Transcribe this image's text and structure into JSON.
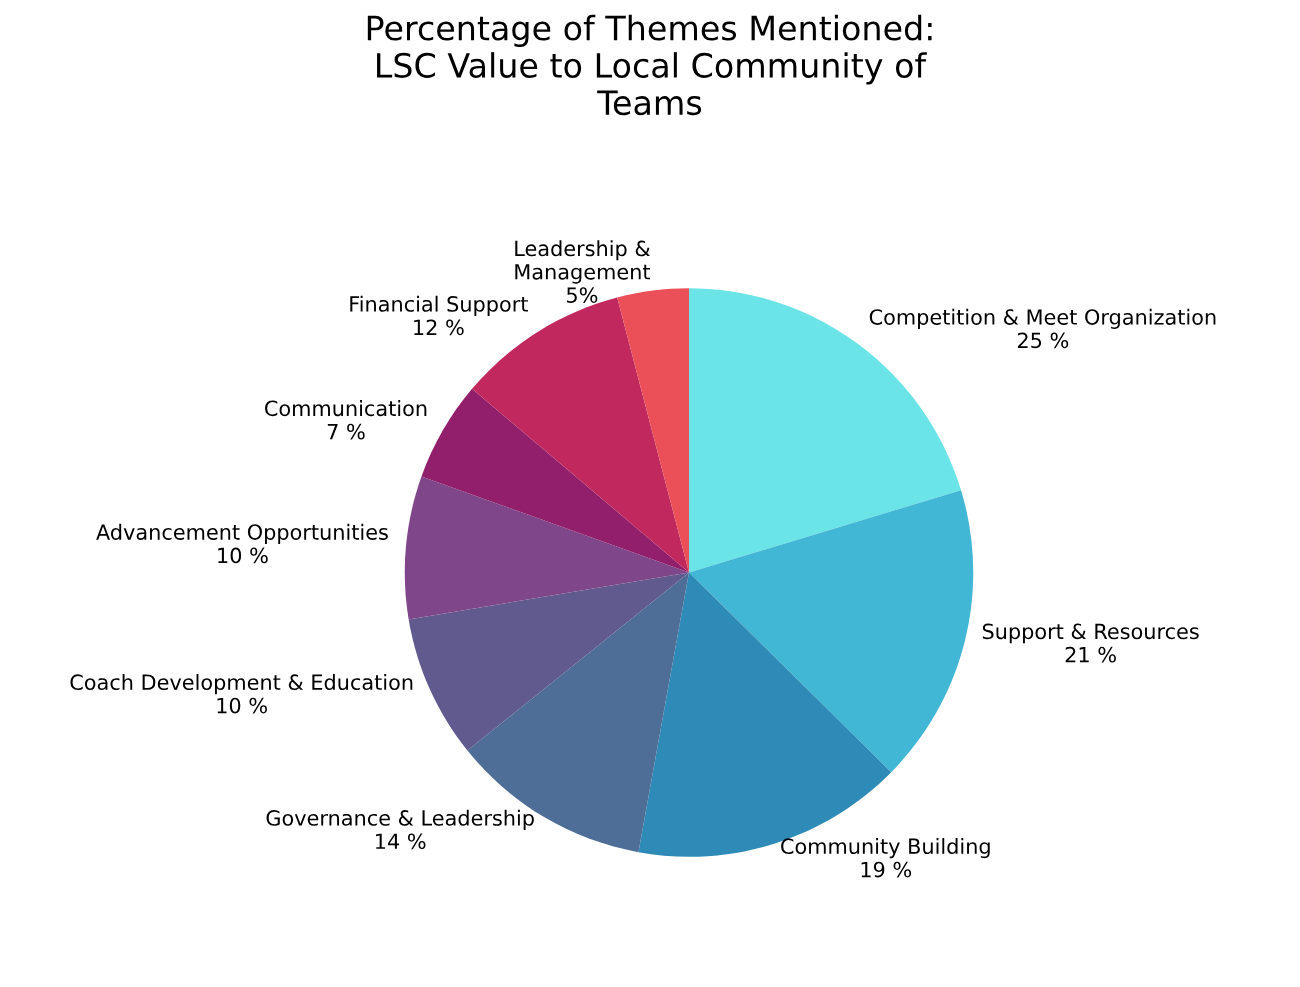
{
  "chart_data": {
    "type": "pie",
    "title": "Percentage of Themes Mentioned:\nLSC Value to Local Community of\nTeams",
    "categories": [
      "Competition & Meet Organization",
      "Support & Resources",
      "Community Building",
      "Governance & Leadership",
      "Coach Development & Education",
      "Advancement Opportunities",
      "Communication",
      "Financial Support",
      "Leadership &\nManagement"
    ],
    "values": [
      25,
      21,
      19,
      14,
      10,
      10,
      7,
      12,
      5
    ],
    "value_labels": [
      "25 %",
      "21 %",
      "19 %",
      "14 %",
      "10 %",
      "10 %",
      "7 %",
      "12 %",
      "5%"
    ],
    "colors": [
      "#6ae4e6",
      "#42b6d5",
      "#2e8ab7",
      "#4e6e98",
      "#615a8f",
      "#7f4689",
      "#921f6c",
      "#c0285e",
      "#eb5058"
    ]
  }
}
